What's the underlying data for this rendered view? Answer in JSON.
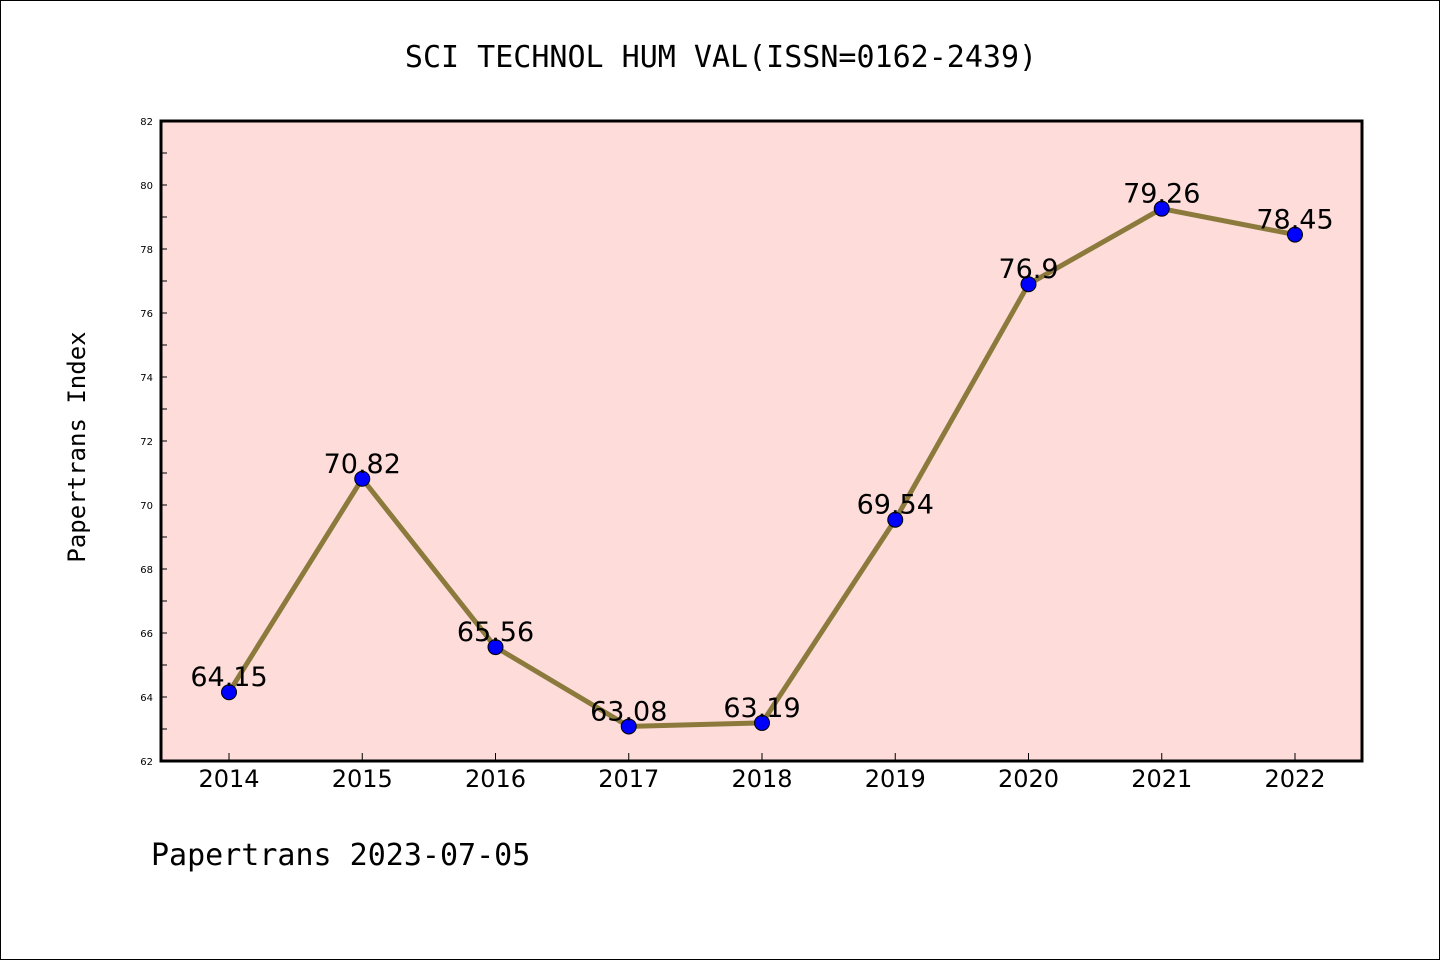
{
  "chart_data": {
    "type": "line",
    "title": "SCI TECHNOL HUM VAL(ISSN=0162-2439)",
    "ylabel": "Papertrans Index",
    "xlabel": "",
    "categories": [
      "2014",
      "2015",
      "2016",
      "2017",
      "2018",
      "2019",
      "2020",
      "2021",
      "2022"
    ],
    "values": [
      64.15,
      70.82,
      65.56,
      63.08,
      63.19,
      69.54,
      76.9,
      79.26,
      78.45
    ],
    "data_labels": [
      "64.15",
      "70.82",
      "65.56",
      "63.08",
      "63.19",
      "69.54",
      "76.9",
      "79.26",
      "78.45"
    ],
    "ylim": [
      62,
      82
    ],
    "yticks": [
      62,
      64,
      66,
      68,
      70,
      72,
      74,
      76,
      78,
      80,
      82
    ],
    "grid": false,
    "colors": {
      "plot_background": "#fddcda",
      "line": "#8b7a3c",
      "marker": "#0000ff"
    }
  },
  "footer": "Papertrans 2023-07-05"
}
